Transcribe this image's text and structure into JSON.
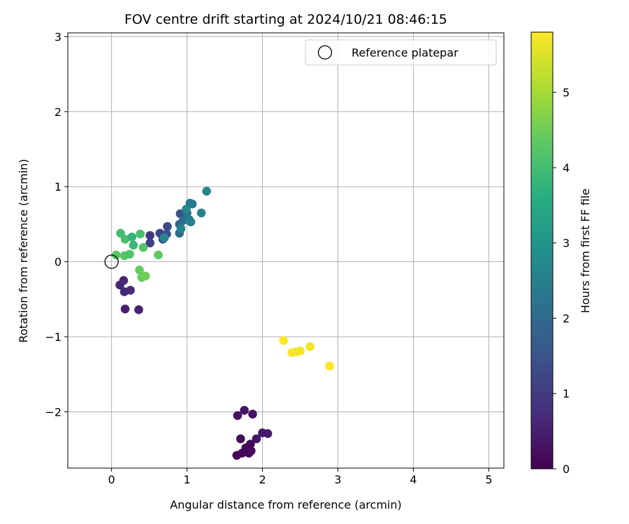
{
  "chart_data": {
    "type": "scatter",
    "title": "FOV centre drift starting at 2024/10/21 08:46:15",
    "xlabel": "Angular distance from reference (arcmin)",
    "ylabel": "Rotation from reference (arcmin)",
    "xlim": [
      -0.58,
      5.2
    ],
    "ylim": [
      -2.75,
      3.05
    ],
    "x_ticks": [
      0,
      1,
      2,
      3,
      4,
      5
    ],
    "y_ticks": [
      -2,
      -1,
      0,
      1,
      2,
      3
    ],
    "grid": true,
    "legend": {
      "placement": "top-right",
      "entries": [
        "Reference platepar"
      ]
    },
    "reference_point": {
      "name": "Reference platepar",
      "x": 0.0,
      "y": 0.0
    },
    "colorbar": {
      "label": "Hours from first FF file",
      "range": [
        0,
        5.8
      ],
      "ticks": [
        0,
        1,
        2,
        3,
        4,
        5
      ],
      "colormap": "viridis"
    },
    "series": [
      {
        "color_value_label": "Hours from first FF file",
        "points": [
          {
            "x": 1.67,
            "y": -2.05,
            "c": 0.25
          },
          {
            "x": 1.76,
            "y": -1.98,
            "c": 0.3
          },
          {
            "x": 1.87,
            "y": -2.03,
            "c": 0.28
          },
          {
            "x": 1.71,
            "y": -2.36,
            "c": 0.2
          },
          {
            "x": 1.66,
            "y": -2.58,
            "c": 0.05
          },
          {
            "x": 1.73,
            "y": -2.55,
            "c": 0.08
          },
          {
            "x": 1.78,
            "y": -2.48,
            "c": 0.1
          },
          {
            "x": 1.84,
            "y": -2.43,
            "c": 0.12
          },
          {
            "x": 1.82,
            "y": -2.55,
            "c": 0.1
          },
          {
            "x": 1.85,
            "y": -2.52,
            "c": 0.15
          },
          {
            "x": 1.92,
            "y": -2.36,
            "c": 0.35
          },
          {
            "x": 2.0,
            "y": -2.28,
            "c": 0.4
          },
          {
            "x": 2.07,
            "y": -2.29,
            "c": 0.42
          },
          {
            "x": 0.18,
            "y": -0.63,
            "c": 0.5
          },
          {
            "x": 0.36,
            "y": -0.64,
            "c": 0.55
          },
          {
            "x": 0.11,
            "y": -0.31,
            "c": 0.6
          },
          {
            "x": 0.16,
            "y": -0.25,
            "c": 0.62
          },
          {
            "x": 0.17,
            "y": -0.4,
            "c": 0.65
          },
          {
            "x": 0.25,
            "y": -0.38,
            "c": 0.7
          },
          {
            "x": 0.51,
            "y": 0.35,
            "c": 1.0
          },
          {
            "x": 0.51,
            "y": 0.25,
            "c": 1.1
          },
          {
            "x": 0.64,
            "y": 0.38,
            "c": 1.2
          },
          {
            "x": 0.74,
            "y": 0.47,
            "c": 1.3
          },
          {
            "x": 0.73,
            "y": 0.37,
            "c": 1.4
          },
          {
            "x": 0.91,
            "y": 0.64,
            "c": 1.45
          },
          {
            "x": 0.68,
            "y": 0.3,
            "c": 1.6
          },
          {
            "x": 0.9,
            "y": 0.5,
            "c": 1.8
          },
          {
            "x": 0.9,
            "y": 0.38,
            "c": 2.0
          },
          {
            "x": 0.95,
            "y": 0.55,
            "c": 2.1
          },
          {
            "x": 1.0,
            "y": 0.65,
            "c": 2.2
          },
          {
            "x": 1.04,
            "y": 0.78,
            "c": 2.3
          },
          {
            "x": 1.07,
            "y": 0.77,
            "c": 2.35
          },
          {
            "x": 1.03,
            "y": 0.56,
            "c": 2.4
          },
          {
            "x": 1.05,
            "y": 0.53,
            "c": 2.45
          },
          {
            "x": 0.92,
            "y": 0.44,
            "c": 2.5
          },
          {
            "x": 1.19,
            "y": 0.65,
            "c": 2.55
          },
          {
            "x": 1.26,
            "y": 0.94,
            "c": 2.6
          },
          {
            "x": 0.7,
            "y": 0.32,
            "c": 2.65
          },
          {
            "x": 0.99,
            "y": 0.7,
            "c": 2.7
          },
          {
            "x": 0.12,
            "y": 0.38,
            "c": 4.0
          },
          {
            "x": 0.18,
            "y": 0.3,
            "c": 4.05
          },
          {
            "x": 0.27,
            "y": 0.33,
            "c": 3.8
          },
          {
            "x": 0.29,
            "y": 0.22,
            "c": 3.9
          },
          {
            "x": 0.38,
            "y": 0.37,
            "c": 4.1
          },
          {
            "x": 0.42,
            "y": 0.19,
            "c": 4.2
          },
          {
            "x": 0.06,
            "y": 0.09,
            "c": 4.3
          },
          {
            "x": 0.17,
            "y": 0.08,
            "c": 4.25
          },
          {
            "x": 0.24,
            "y": 0.1,
            "c": 4.15
          },
          {
            "x": 0.62,
            "y": 0.09,
            "c": 4.35
          },
          {
            "x": 0.37,
            "y": -0.11,
            "c": 4.4
          },
          {
            "x": 0.4,
            "y": -0.21,
            "c": 4.45
          },
          {
            "x": 0.45,
            "y": -0.19,
            "c": 4.5
          },
          {
            "x": 2.28,
            "y": -1.05,
            "c": 5.8
          },
          {
            "x": 2.39,
            "y": -1.21,
            "c": 5.75
          },
          {
            "x": 2.45,
            "y": -1.2,
            "c": 5.72
          },
          {
            "x": 2.5,
            "y": -1.19,
            "c": 5.7
          },
          {
            "x": 2.63,
            "y": -1.13,
            "c": 5.68
          },
          {
            "x": 2.89,
            "y": -1.39,
            "c": 5.78
          }
        ]
      }
    ]
  }
}
